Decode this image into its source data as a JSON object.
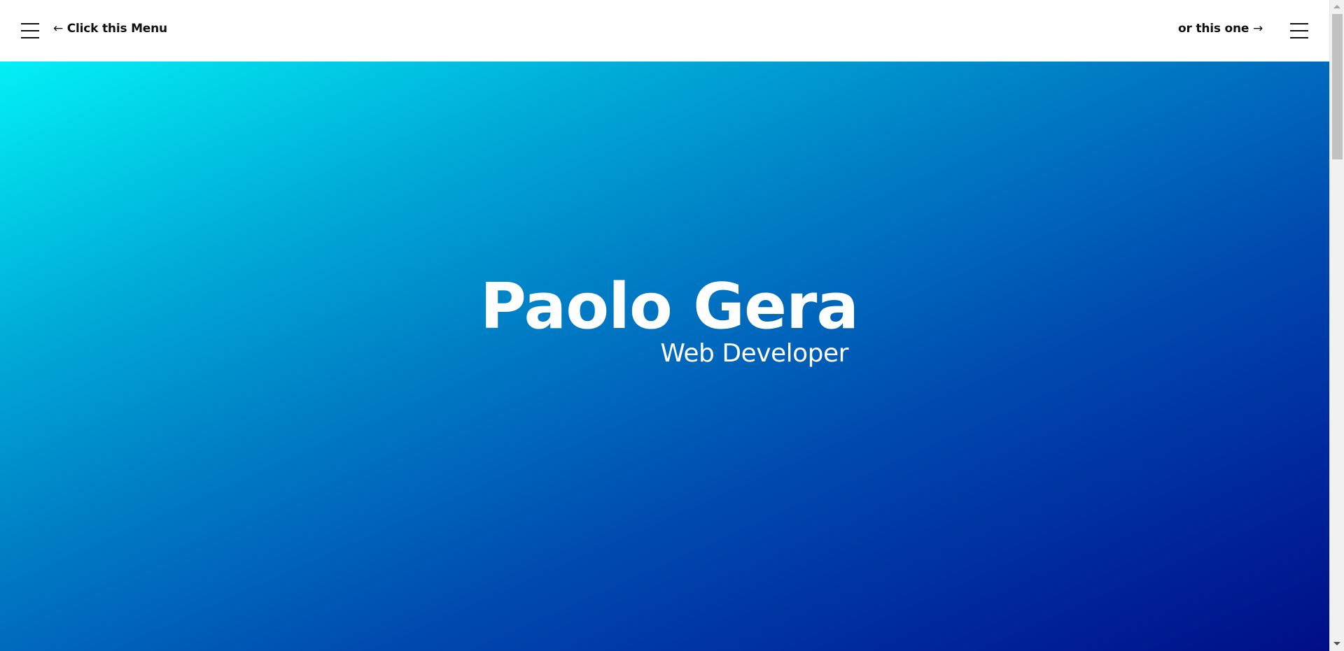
{
  "header": {
    "left_hint": "Click this Menu",
    "left_arrow": "←",
    "right_hint": "or this one",
    "right_arrow": "→"
  },
  "hero": {
    "name": "Paolo Gera",
    "role": "Web Developer"
  },
  "icons": {
    "left_menu": "hamburger-menu-icon",
    "right_menu": "hamburger-menu-icon"
  },
  "colors": {
    "gradient_start": "#02f0f6",
    "gradient_end": "#000e86",
    "header_bg": "#ffffff",
    "text_dark": "#111111",
    "hero_text": "#ffffff"
  }
}
